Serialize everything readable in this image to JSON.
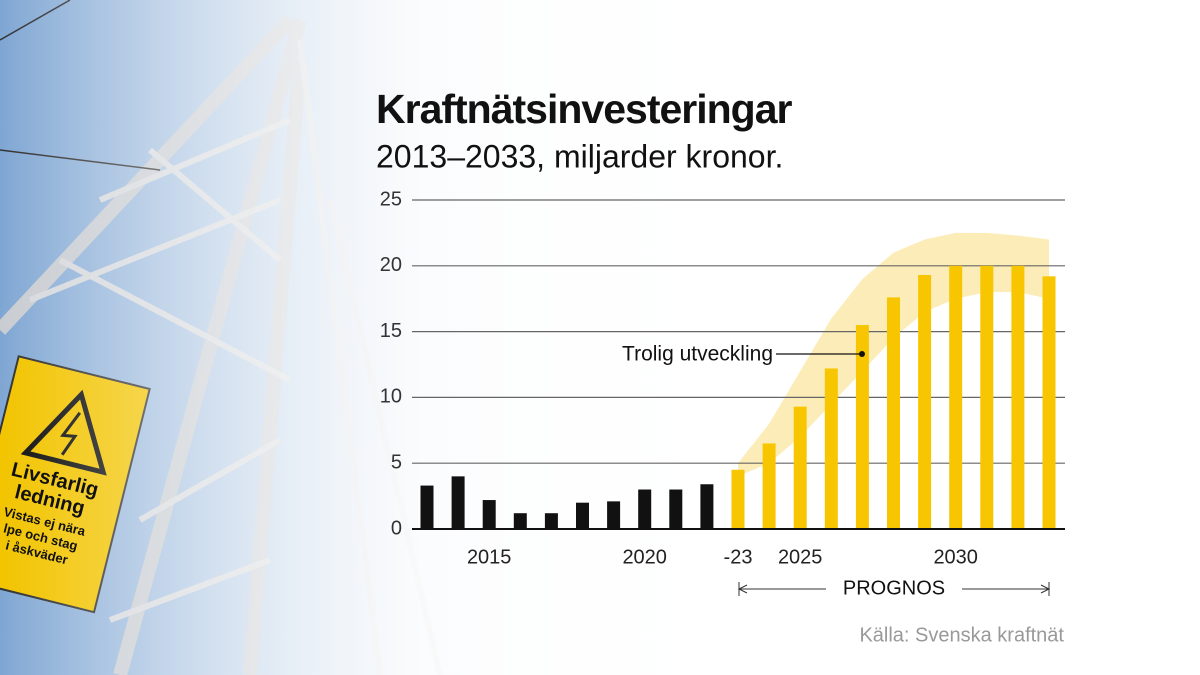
{
  "chart_data": {
    "type": "bar",
    "title": "Kraftnätsinvesteringar",
    "subtitle": "2013–2033, miljarder kronor.",
    "categories": [
      null,
      null,
      "2015",
      null,
      null,
      null,
      null,
      "2020",
      null,
      null,
      "-23",
      null,
      "2025",
      null,
      null,
      null,
      null,
      "2030",
      null,
      null,
      null
    ],
    "values": [
      3.3,
      4.0,
      2.2,
      1.2,
      1.2,
      2.0,
      2.1,
      3.0,
      3.0,
      3.4,
      4.5,
      6.5,
      9.3,
      12.2,
      15.5,
      17.6,
      19.3,
      20.0,
      20.0,
      20.0,
      19.2
    ],
    "colors": [
      "#111111",
      "#111111",
      "#111111",
      "#111111",
      "#111111",
      "#111111",
      "#111111",
      "#111111",
      "#111111",
      "#111111",
      "#f7c600",
      "#f7c600",
      "#f7c600",
      "#f7c600",
      "#f7c600",
      "#f7c600",
      "#f7c600",
      "#f7c600",
      "#f7c600",
      "#f7c600",
      "#f7c600"
    ],
    "range": {
      "color": "#fbe9a6",
      "low": [
        null,
        null,
        null,
        null,
        null,
        null,
        null,
        null,
        null,
        null,
        4,
        5,
        7,
        9.5,
        12,
        14.5,
        16.5,
        17.5,
        18,
        18,
        17.5
      ],
      "high": [
        null,
        null,
        null,
        null,
        null,
        null,
        null,
        null,
        null,
        null,
        5,
        8,
        12,
        16,
        19,
        21,
        22,
        22.5,
        22.5,
        22.3,
        22
      ]
    },
    "annotation": "Trolig utveckling",
    "prognosis_label": "PROGNOS",
    "source": "Källa: Svenska kraftnät",
    "ylim": [
      0,
      25
    ],
    "yticks": [
      0,
      5,
      10,
      15,
      20,
      25
    ],
    "grid": true
  },
  "photo_sign": {
    "lines": [
      "Livsfarlig",
      "ledning",
      "Vistas ej nära",
      "lpe och stag",
      "i åskväder"
    ]
  }
}
